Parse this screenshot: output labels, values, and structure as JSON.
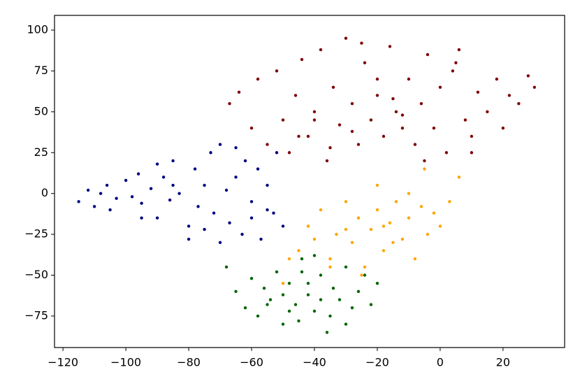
{
  "chart_data": {
    "type": "scatter",
    "xlim": [
      -122.7,
      39.6
    ],
    "ylim": [
      -94.3,
      109
    ],
    "xticks": [
      {
        "value": -120,
        "label": "−120"
      },
      {
        "value": -100,
        "label": "−100"
      },
      {
        "value": -80,
        "label": "−80"
      },
      {
        "value": -60,
        "label": "−60"
      },
      {
        "value": -40,
        "label": "−40"
      },
      {
        "value": -20,
        "label": "−20"
      },
      0,
      20
    ],
    "yticks": [
      {
        "value": -75,
        "label": "−75"
      },
      {
        "value": -50,
        "label": "−50"
      },
      {
        "value": -25,
        "label": "−25"
      },
      0,
      25,
      50,
      75,
      100
    ],
    "series": [
      {
        "color": "#000080",
        "x": [
          -115,
          -112,
          -110,
          -108,
          -106,
          -105,
          -103,
          -100,
          -98,
          -96,
          -95,
          -92,
          -90,
          -88,
          -86,
          -85,
          -83,
          -80,
          -78,
          -77,
          -75,
          -73,
          -72,
          -70,
          -68,
          -67,
          -65,
          -63,
          -62,
          -60,
          -58,
          -57,
          -55,
          -53,
          -52,
          -50,
          -70,
          -80,
          -90,
          -65,
          -75,
          -60,
          -85,
          -95,
          -55
        ],
        "y": [
          -5,
          2,
          -8,
          0,
          5,
          -10,
          -3,
          8,
          -2,
          12,
          -6,
          3,
          -15,
          10,
          -4,
          20,
          0,
          -20,
          15,
          -8,
          5,
          25,
          -12,
          30,
          2,
          -18,
          10,
          -25,
          20,
          -5,
          15,
          -28,
          5,
          -12,
          25,
          -20,
          -30,
          -28,
          18,
          28,
          -22,
          -15,
          5,
          -15,
          -10
        ]
      },
      {
        "color": "#800000",
        "x": [
          -67,
          -64,
          -60,
          -58,
          -55,
          -52,
          -50,
          -48,
          -46,
          -44,
          -42,
          -40,
          -38,
          -36,
          -34,
          -32,
          -30,
          -28,
          -26,
          -24,
          -22,
          -20,
          -18,
          -16,
          -14,
          -12,
          -10,
          -8,
          -6,
          -4,
          -2,
          0,
          2,
          4,
          6,
          8,
          10,
          12,
          15,
          18,
          20,
          22,
          25,
          28,
          30,
          -28,
          -20,
          -12,
          -5,
          -35,
          -45,
          -15,
          5,
          -25,
          -40,
          10
        ],
        "y": [
          55,
          62,
          40,
          70,
          30,
          75,
          45,
          25,
          60,
          82,
          35,
          50,
          88,
          20,
          65,
          42,
          95,
          55,
          30,
          80,
          45,
          60,
          35,
          90,
          50,
          40,
          70,
          30,
          55,
          85,
          40,
          65,
          25,
          75,
          88,
          45,
          35,
          62,
          50,
          70,
          40,
          60,
          55,
          72,
          65,
          38,
          70,
          48,
          20,
          28,
          35,
          58,
          80,
          92,
          45,
          25
        ]
      },
      {
        "color": "#ffa500",
        "x": [
          -45,
          -42,
          -40,
          -38,
          -35,
          -33,
          -30,
          -28,
          -26,
          -24,
          -22,
          -20,
          -18,
          -16,
          -14,
          -12,
          -10,
          -8,
          -6,
          -4,
          -2,
          0,
          3,
          6,
          -25,
          -15,
          -30,
          -20,
          -10,
          -35,
          -50,
          -48,
          -5,
          -18
        ],
        "y": [
          -35,
          -20,
          -28,
          -10,
          -40,
          -25,
          -5,
          -30,
          -15,
          -45,
          -22,
          -10,
          -35,
          -18,
          -5,
          -28,
          -15,
          -40,
          -8,
          -25,
          -12,
          -20,
          -5,
          10,
          -50,
          -30,
          -22,
          5,
          0,
          -45,
          -55,
          -40,
          15,
          -20
        ]
      },
      {
        "color": "#006400",
        "x": [
          -68,
          -65,
          -62,
          -60,
          -58,
          -56,
          -54,
          -52,
          -50,
          -48,
          -46,
          -44,
          -42,
          -40,
          -38,
          -36,
          -34,
          -32,
          -30,
          -28,
          -26,
          -24,
          -22,
          -20,
          -45,
          -40,
          -35,
          -50,
          -55,
          -42,
          -38,
          -48,
          -30,
          -44
        ],
        "y": [
          -45,
          -60,
          -70,
          -52,
          -75,
          -58,
          -65,
          -48,
          -80,
          -55,
          -68,
          -40,
          -62,
          -72,
          -50,
          -85,
          -58,
          -65,
          -45,
          -70,
          -60,
          -50,
          -68,
          -55,
          -78,
          -38,
          -75,
          -62,
          -68,
          -55,
          -65,
          -72,
          -80,
          -48
        ]
      }
    ]
  }
}
